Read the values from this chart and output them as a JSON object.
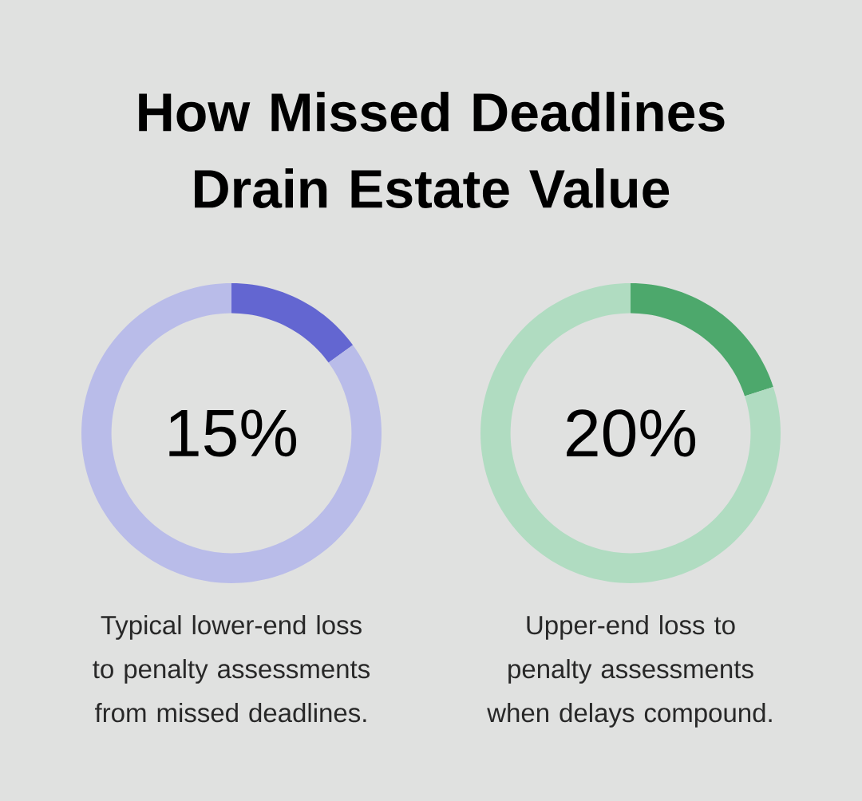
{
  "chart_data": [
    {
      "type": "donut",
      "title": "How Missed Deadlines Drain Estate Value",
      "categories": [
        null,
        null
      ],
      "values": [
        15,
        85
      ],
      "colors": [
        "#6366d1",
        "#b9bce9"
      ],
      "annotations": [
        "15%",
        "Typical lower-end loss to penalty assessments from missed deadlines."
      ]
    },
    {
      "type": "donut",
      "categories": [
        null,
        null
      ],
      "values": [
        20,
        80
      ],
      "colors": [
        "#4da86c",
        "#b0dcc1"
      ],
      "annotations": [
        "20%",
        "Upper-end loss to penalty assessments when delays compound."
      ]
    }
  ]
}
